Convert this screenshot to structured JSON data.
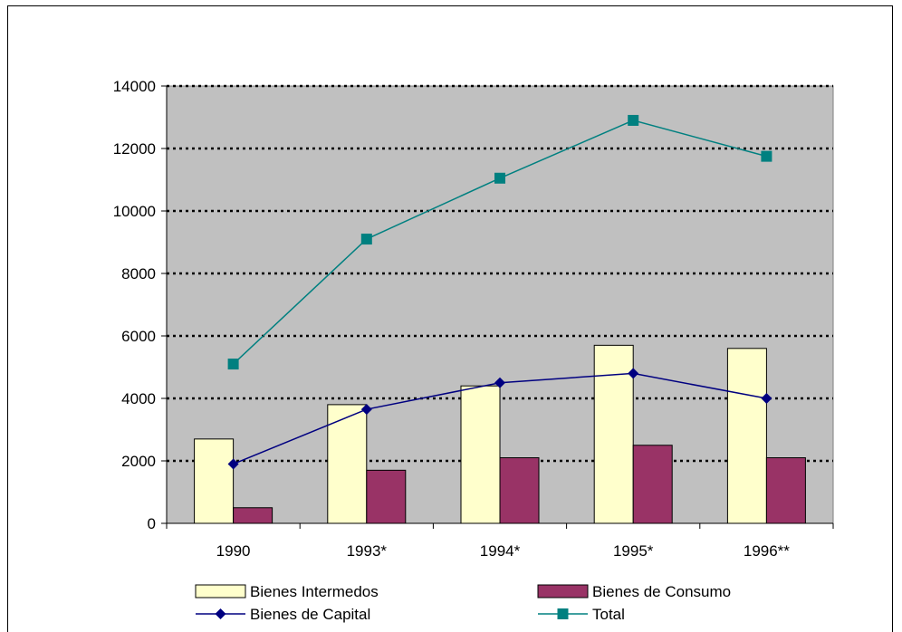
{
  "chart_data": {
    "type": "bar",
    "categories": [
      "1990",
      "1993*",
      "1994*",
      "1995*",
      "1996**"
    ],
    "bar_series": [
      {
        "name": "Bienes Intermedos",
        "values": [
          2700,
          3800,
          4400,
          5700,
          5600
        ],
        "color": "#FFFFCC"
      },
      {
        "name": "Bienes de Consumo",
        "values": [
          500,
          1700,
          2100,
          2500,
          2100
        ],
        "color": "#993366"
      }
    ],
    "line_series": [
      {
        "name": "Bienes de Capital",
        "values": [
          1900,
          3650,
          4500,
          4800,
          4000
        ],
        "color": "#000080",
        "marker": "diamond"
      },
      {
        "name": "Total",
        "values": [
          5100,
          9100,
          11050,
          12900,
          11750
        ],
        "color": "#008080",
        "marker": "square"
      }
    ],
    "ylim": [
      0,
      14000
    ],
    "yticks": [
      0,
      2000,
      4000,
      6000,
      8000,
      10000,
      12000,
      14000
    ],
    "title": "",
    "xlabel": "",
    "ylabel": "",
    "grid": "dotted horizontal",
    "plot_background": "#C0C0C0",
    "legend_position": "bottom"
  }
}
